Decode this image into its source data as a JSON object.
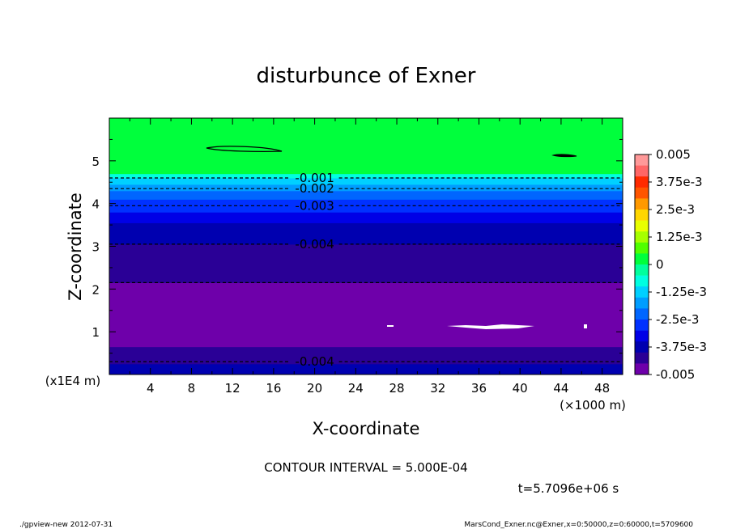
{
  "chart_data": {
    "type": "heatmap",
    "title": "disturbunce of Exner",
    "xlabel": "X-coordinate",
    "ylabel": "Z-coordinate",
    "x_unit_label": "(×1000 m)",
    "y_unit_label": "(x1E4 m)",
    "xlim": [
      0,
      50
    ],
    "ylim": [
      0,
      6
    ],
    "x_ticks": [
      "4",
      "8",
      "12",
      "16",
      "20",
      "24",
      "28",
      "32",
      "36",
      "40",
      "44",
      "48"
    ],
    "y_ticks": [
      "1",
      "2",
      "3",
      "4",
      "5"
    ],
    "colorbar": {
      "vmin": -0.005,
      "vmax": 0.005,
      "labels": [
        "0.005",
        "3.75e-3",
        "2.5e-3",
        "1.25e-3",
        "0",
        "-1.25e-3",
        "-2.5e-3",
        "-3.75e-3",
        "-0.005"
      ],
      "colors": [
        "#ff9999",
        "#ff6666",
        "#ff2a00",
        "#ff5500",
        "#ff9900",
        "#ffd700",
        "#e8ff00",
        "#a6ff00",
        "#50ff00",
        "#00ff3c",
        "#00ff9d",
        "#00ffe1",
        "#00d0ff",
        "#009dff",
        "#0066ff",
        "#0031ff",
        "#0000e6",
        "#0000b0",
        "#2a0096",
        "#6e00aa"
      ]
    },
    "bands": [
      {
        "z0": 0.0,
        "z1": 0.25,
        "value": -0.00375
      },
      {
        "z0": 0.25,
        "z1": 0.5,
        "value": -0.0041
      },
      {
        "z0": 0.5,
        "z1": 0.65,
        "value": -0.0043
      },
      {
        "z0": 0.65,
        "z1": 0.9,
        "value": -0.0047
      },
      {
        "z0": 0.9,
        "z1": 1.65,
        "value": -0.0049
      },
      {
        "z0": 1.65,
        "z1": 2.15,
        "value": -0.0047
      },
      {
        "z0": 2.15,
        "z1": 2.6,
        "value": -0.0043
      },
      {
        "z0": 2.6,
        "z1": 3.05,
        "value": -0.0041
      },
      {
        "z0": 3.05,
        "z1": 3.55,
        "value": -0.0037
      },
      {
        "z0": 3.55,
        "z1": 3.8,
        "value": -0.0033
      },
      {
        "z0": 3.8,
        "z1": 3.95,
        "value": -0.0029
      },
      {
        "z0": 3.95,
        "z1": 4.1,
        "value": -0.0026
      },
      {
        "z0": 4.1,
        "z1": 4.3,
        "value": -0.0021
      },
      {
        "z0": 4.3,
        "z1": 4.45,
        "value": -0.0017
      },
      {
        "z0": 4.45,
        "z1": 4.6,
        "value": -0.0012
      },
      {
        "z0": 4.6,
        "z1": 4.7,
        "value": -0.0006
      },
      {
        "z0": 4.7,
        "z1": 6.0,
        "value": 0.0001
      }
    ],
    "contours": [
      {
        "z": 4.6,
        "label": "-0.001",
        "label_x": 20
      },
      {
        "z": 4.35,
        "label": "-0.002",
        "label_x": 20
      },
      {
        "z": 3.95,
        "label": "-0.003",
        "label_x": 20
      },
      {
        "z": 3.05,
        "label": "-0.004",
        "label_x": 20
      },
      {
        "z": 2.15,
        "label": "",
        "label_x": 0
      },
      {
        "z": 0.3,
        "label": "-0.004",
        "label_x": 20
      }
    ],
    "contour_interval_text": "CONTOUR INTERVAL = 5.000E-04",
    "time_text": "t=5.7096e+06 s"
  },
  "footer": {
    "left": "./gpview-new   2012-07-31",
    "right": "MarsCond_Exner.nc@Exner,x=0:50000,z=0:60000,t=5709600"
  }
}
